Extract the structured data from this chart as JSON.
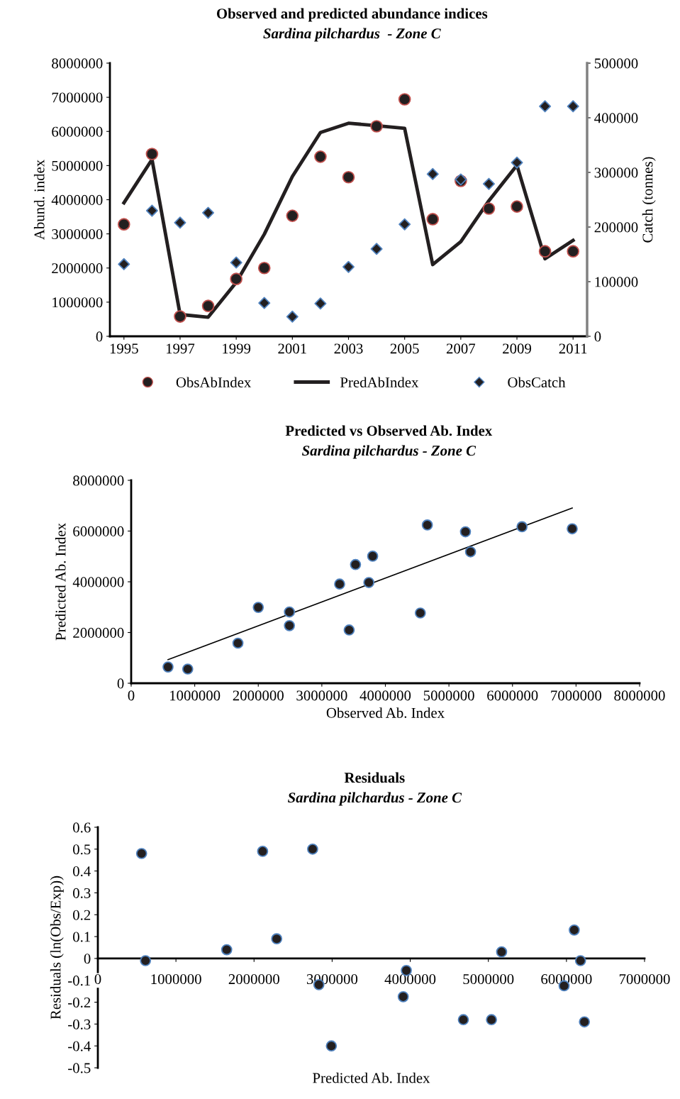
{
  "chart_data": [
    {
      "type": "line",
      "title": "Observed and predicted abundance indices",
      "subtitle": "Sardina pilchardus  - Zone C",
      "ylabel": "Abund. index",
      "y2label": "Catch (tonnes)",
      "categories": [
        "1995",
        null,
        "1997",
        null,
        "1999",
        null,
        "2001",
        null,
        "2003",
        null,
        "2005",
        null,
        "2007",
        null,
        "2009",
        null,
        "2011"
      ],
      "series": [
        {
          "name": "ObsAbIndex",
          "type": "scatter",
          "marker": "circle",
          "color": "#231f20",
          "values": [
            3280000,
            5340000,
            580000,
            890000,
            1680000,
            2000000,
            3530000,
            5260000,
            4660000,
            6150000,
            6940000,
            3430000,
            4550000,
            3740000,
            3800000,
            2490000,
            2490000
          ]
        },
        {
          "name": "PredAbIndex",
          "type": "line",
          "marker": "none",
          "color": "#231f20",
          "values": [
            3910000,
            5180000,
            640000,
            560000,
            1580000,
            2990000,
            4680000,
            5970000,
            6240000,
            6170000,
            6090000,
            2100000,
            2770000,
            3970000,
            5010000,
            2270000,
            2810000
          ]
        },
        {
          "name": "ObsCatch",
          "type": "scatter",
          "marker": "diamond",
          "axis": "y2",
          "color": "#231f20",
          "values": [
            132000,
            230000,
            208000,
            226000,
            135000,
            61000,
            36000,
            60000,
            127000,
            160000,
            205000,
            297000,
            287000,
            279000,
            318000,
            421000,
            421000
          ]
        }
      ],
      "ylim": [
        0,
        8000000
      ],
      "yticks": [
        0,
        1000000,
        2000000,
        3000000,
        4000000,
        5000000,
        6000000,
        7000000,
        8000000
      ],
      "y2lim": [
        0,
        500000
      ],
      "y2ticks": [
        0,
        100000,
        200000,
        300000,
        400000,
        500000
      ],
      "legend": "bottom"
    },
    {
      "type": "scatter",
      "title": "Predicted vs Observed Ab. Index",
      "subtitle": "Sardina pilchardus - Zone C",
      "xlabel": "Observed Ab. Index",
      "ylabel": "Predicted Ab. Index",
      "series": [
        {
          "type": "scatter",
          "marker": "circle",
          "color": "#231f20",
          "x": [
            3280000,
            5340000,
            580000,
            890000,
            1680000,
            2000000,
            3530000,
            5260000,
            4660000,
            6150000,
            6940000,
            3430000,
            4550000,
            3740000,
            3800000,
            2490000,
            2490000
          ],
          "values": [
            3910000,
            5180000,
            640000,
            560000,
            1580000,
            2990000,
            4680000,
            5970000,
            6240000,
            6170000,
            6090000,
            2100000,
            2770000,
            3970000,
            5010000,
            2270000,
            2810000
          ]
        },
        {
          "type": "line",
          "marker": "none",
          "color": "#000000",
          "x": [
            580000,
            6940000
          ],
          "values": [
            930000,
            6910000
          ]
        }
      ],
      "xlim": [
        0,
        8000000
      ],
      "xticks": [
        0,
        1000000,
        2000000,
        3000000,
        4000000,
        5000000,
        6000000,
        7000000,
        8000000
      ],
      "ylim": [
        0,
        8000000
      ],
      "yticks": [
        0,
        2000000,
        4000000,
        6000000,
        8000000
      ]
    },
    {
      "type": "scatter",
      "title": "Residuals",
      "subtitle": "Sardina pilchardus - Zone C",
      "xlabel": "Predicted Ab. Index",
      "ylabel": "Residuals (ln(Obs/Exp))",
      "series": [
        {
          "type": "scatter",
          "marker": "circle",
          "color": "#231f20",
          "x": [
            560000,
            610000,
            1650000,
            2110000,
            2290000,
            2750000,
            2830000,
            2990000,
            3910000,
            3950000,
            4680000,
            5040000,
            5170000,
            5970000,
            6100000,
            6180000,
            6230000
          ],
          "values": [
            0.48,
            -0.01,
            0.04,
            0.49,
            0.09,
            0.5,
            -0.12,
            -0.4,
            -0.175,
            -0.055,
            -0.28,
            -0.28,
            0.03,
            -0.125,
            0.13,
            -0.01,
            -0.29
          ]
        }
      ],
      "xlim": [
        0,
        7000000
      ],
      "xticks": [
        0,
        1000000,
        2000000,
        3000000,
        4000000,
        5000000,
        6000000,
        7000000
      ],
      "ylim": [
        -0.5,
        0.6
      ],
      "yticks": [
        0.6,
        0.5,
        0.4,
        0.3,
        0.2,
        0.1,
        0,
        -0.1,
        -0.2,
        -0.3,
        -0.4,
        -0.5
      ]
    }
  ]
}
